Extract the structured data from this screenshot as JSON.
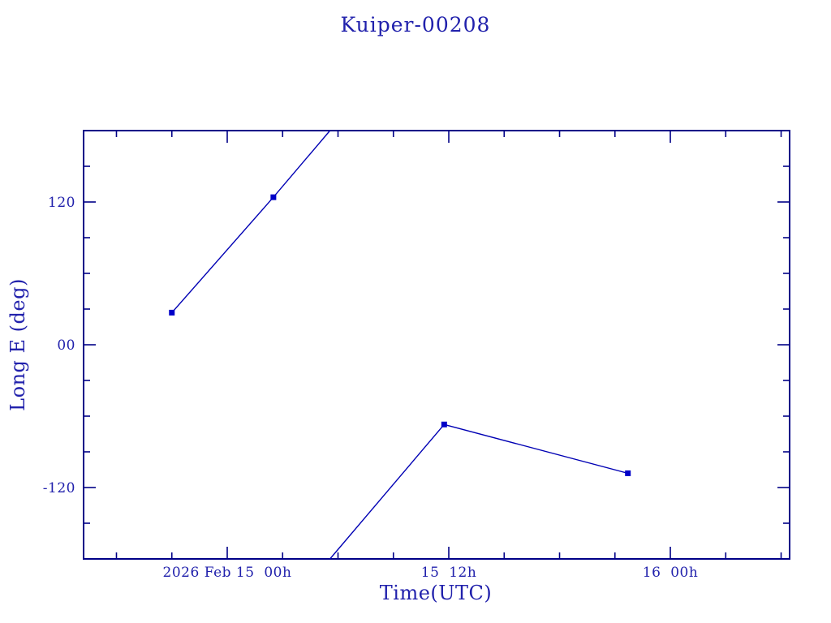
{
  "chart_data": {
    "type": "line",
    "title": "Kuiper-00208",
    "xlabel": "Time(UTC)",
    "ylabel": "Long E (deg)",
    "x_unit_hours_origin": "2026 Feb 15 00h UTC",
    "xlim": [
      -7.78,
      30.46
    ],
    "ylim": [
      -180,
      180
    ],
    "wrap_at": 180,
    "grid": false,
    "legend": "none",
    "x_major_ticks": [
      {
        "t": 0,
        "label": "2026 Feb 15  00h"
      },
      {
        "t": 12,
        "label": "15  12h"
      },
      {
        "t": 24,
        "label": "16  00h"
      }
    ],
    "x_minor_ticks": [
      -6,
      -3,
      3,
      6,
      9,
      15,
      18,
      21,
      27,
      30
    ],
    "y_major_ticks": [
      {
        "v": 120,
        "label": "120"
      },
      {
        "v": 0,
        "label": "00"
      },
      {
        "v": -120,
        "label": "-120"
      }
    ],
    "y_minor_ticks": [
      -150,
      -90,
      -60,
      -30,
      30,
      60,
      90,
      150
    ],
    "series": [
      {
        "name": "Long E",
        "marker": "square",
        "points": [
          {
            "utc": "2026 Feb 14 21:00",
            "t": -3.0,
            "value": 27
          },
          {
            "utc": "2026 Feb 15 02:30",
            "t": 2.5,
            "value": 124
          },
          {
            "utc": "2026 Feb 15 11:45",
            "t": 11.75,
            "value": -67
          },
          {
            "utc": "2026 Feb 15 21:45",
            "t": 21.7,
            "value": -108
          }
        ]
      }
    ],
    "colors": {
      "background": "#ffffff",
      "frame": "#000087",
      "line": "#0000b4",
      "marker": "#0000c8",
      "text": "#2121ac"
    }
  }
}
